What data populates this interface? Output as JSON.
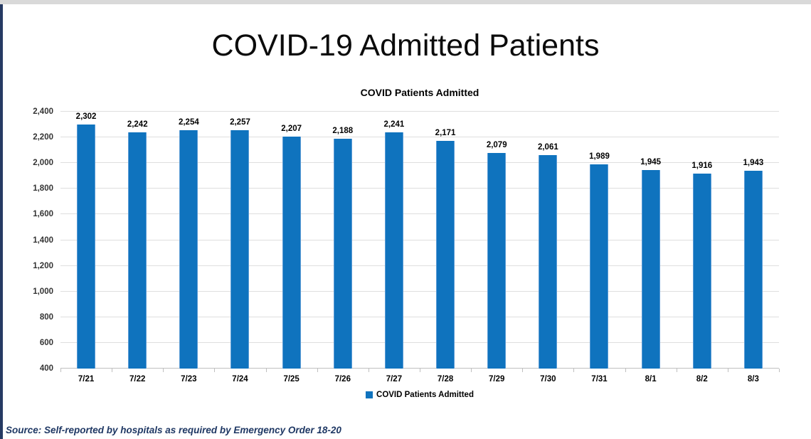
{
  "page": {
    "title": "COVID-19 Admitted Patients",
    "source_note": "Source: Self-reported by hospitals as required by Emergency Order 18-20"
  },
  "chart_data": {
    "type": "bar",
    "title": "COVID Patients Admitted",
    "categories": [
      "7/21",
      "7/22",
      "7/23",
      "7/24",
      "7/25",
      "7/26",
      "7/27",
      "7/28",
      "7/29",
      "7/30",
      "7/31",
      "8/1",
      "8/2",
      "8/3"
    ],
    "values": [
      2302,
      2242,
      2254,
      2257,
      2207,
      2188,
      2241,
      2171,
      2079,
      2061,
      1989,
      1945,
      1916,
      1943
    ],
    "value_labels": [
      "2,302",
      "2,242",
      "2,254",
      "2,257",
      "2,207",
      "2,188",
      "2,241",
      "2,171",
      "2,079",
      "2,061",
      "1,989",
      "1,945",
      "1,916",
      "1,943"
    ],
    "xlabel": "",
    "ylabel": "",
    "ylim": [
      400,
      2400
    ],
    "ytick_step": 200,
    "ytick_labels": [
      "400",
      "600",
      "800",
      "1,000",
      "1,200",
      "1,400",
      "1,600",
      "1,800",
      "2,000",
      "2,200",
      "2,400"
    ],
    "grid": true,
    "legend": {
      "position": "bottom",
      "entries": [
        {
          "label": "COVID Patients Admitted",
          "color": "#0f73be"
        }
      ]
    },
    "bar_color": "#0f73be"
  },
  "colors": {
    "bar": "#0f73be",
    "gridline": "#dedede",
    "axis_line": "#bfbfbf",
    "source_text": "#1f3864",
    "left_border": "#263a63",
    "top_strip": "#d9d9d9"
  }
}
